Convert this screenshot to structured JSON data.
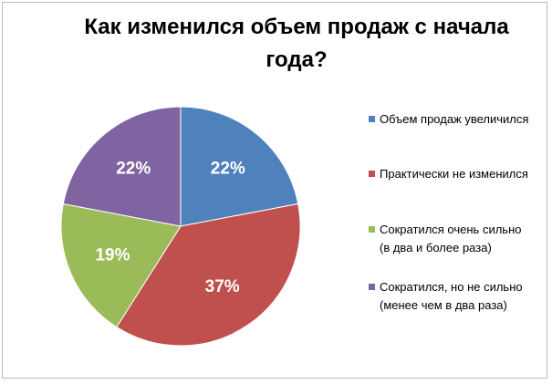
{
  "chart_data": {
    "type": "pie",
    "title": "Как изменился объем продаж с начала года?",
    "categories": [
      "Объем продаж увеличился",
      "Практически не изменился",
      "Сократился очень сильно (в два и более раза)",
      "Сократился, но не сильно (менее чем в два раза)"
    ],
    "values": [
      22,
      37,
      19,
      22
    ],
    "value_labels": [
      "22%",
      "37%",
      "19%",
      "22%"
    ],
    "colors": [
      "#4f81bd",
      "#c0504d",
      "#9bbb59",
      "#8064a2"
    ],
    "legend": "right"
  }
}
